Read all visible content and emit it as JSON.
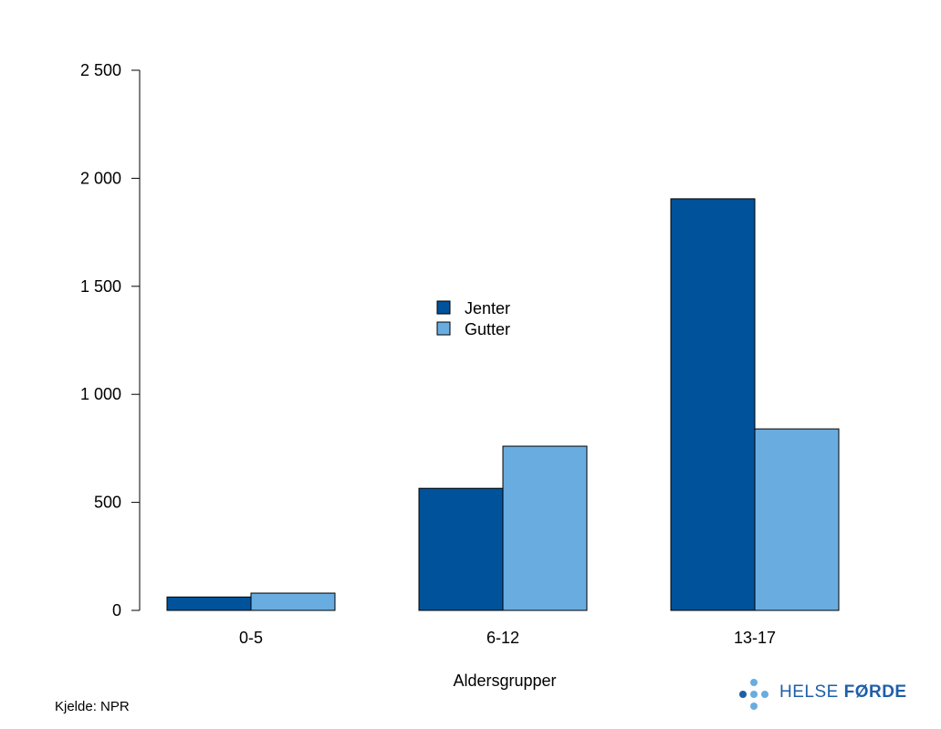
{
  "chart_data": {
    "type": "bar",
    "categories": [
      "0-5",
      "6-12",
      "13-17"
    ],
    "series": [
      {
        "name": "Jenter",
        "values": [
          62,
          565,
          1905
        ],
        "color": "#00529b"
      },
      {
        "name": "Gutter",
        "values": [
          80,
          760,
          840
        ],
        "color": "#69ade0"
      }
    ],
    "xlabel": "Aldersgrupper",
    "ylabel": "",
    "ylim": [
      0,
      2500
    ],
    "yticks": [
      0,
      500,
      1000,
      1500,
      2000,
      2500
    ],
    "ytick_labels": [
      "0",
      "500",
      "1 000",
      "1 500",
      "2 000",
      "2 500"
    ],
    "grid": false,
    "legend_placement": "center"
  },
  "footer": {
    "source": "Kjelde: NPR",
    "logo_word1": "HELSE",
    "logo_word2": "FØRDE",
    "logo_color": "#1f5fa8"
  }
}
